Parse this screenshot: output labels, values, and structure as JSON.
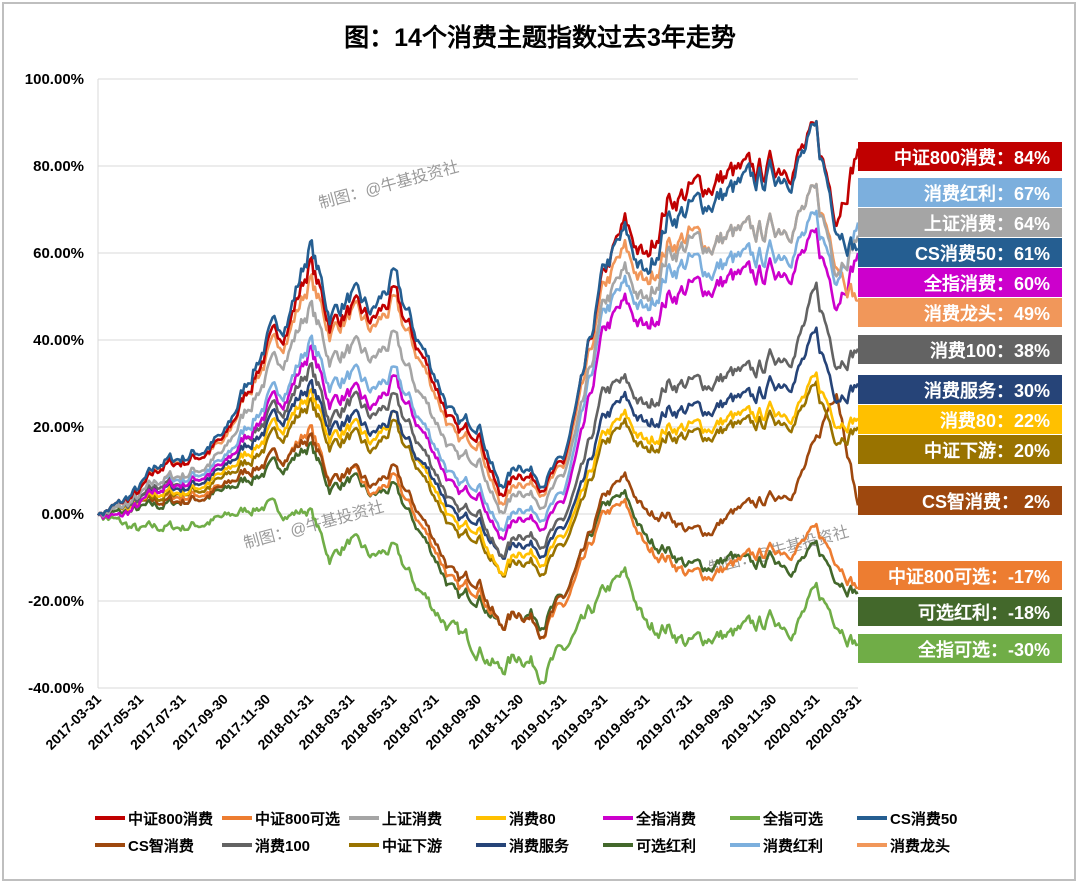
{
  "chart_data": {
    "type": "line",
    "title": "图：14个消费主题指数过去3年走势",
    "x": [
      "2017-03-31",
      "2017-04-30",
      "2017-05-31",
      "2017-06-30",
      "2017-07-31",
      "2017-08-31",
      "2017-09-30",
      "2017-10-31",
      "2017-11-30",
      "2017-12-31",
      "2018-01-31",
      "2018-02-28",
      "2018-03-31",
      "2018-04-30",
      "2018-05-31",
      "2018-06-30",
      "2018-07-31",
      "2018-08-31",
      "2018-09-30",
      "2018-10-31",
      "2018-11-30",
      "2018-12-31",
      "2019-01-31",
      "2019-02-28",
      "2019-03-31",
      "2019-04-30",
      "2019-05-31",
      "2019-06-30",
      "2019-07-31",
      "2019-08-31",
      "2019-09-30",
      "2019-10-31",
      "2019-11-30",
      "2019-12-31",
      "2020-01-31",
      "2020-02-29",
      "2020-03-31"
    ],
    "x_tick_labels": [
      "2017-03-31",
      "2017-05-31",
      "2017-07-31",
      "2017-09-30",
      "2017-11-30",
      "2018-01-31",
      "2018-03-31",
      "2018-05-31",
      "2018-07-31",
      "2018-09-30",
      "2018-11-30",
      "2019-01-31",
      "2019-03-31",
      "2019-05-31",
      "2019-07-31",
      "2019-09-30",
      "2019-11-30",
      "2020-01-31",
      "2020-03-31"
    ],
    "y_tick_labels": [
      "100.00%",
      "80.00%",
      "60.00%",
      "40.00%",
      "20.00%",
      "0.00%",
      "-20.00%",
      "-40.00%"
    ],
    "ylim": [
      -40,
      100
    ],
    "y_unit": "%",
    "grid": true,
    "legend_position": "bottom",
    "watermark": "制图：@牛基投资社",
    "series": [
      {
        "name": "中证800消费",
        "color": "#c00000",
        "end_label": "中证800消费：84%",
        "values": [
          0,
          2,
          5,
          11,
          12,
          14,
          17,
          28,
          38,
          44,
          58,
          44,
          47,
          44,
          50,
          40,
          30,
          18,
          20,
          4,
          10,
          7,
          11,
          30,
          55,
          66,
          58,
          72,
          74,
          76,
          78,
          78,
          80,
          82,
          86,
          70,
          84
        ]
      },
      {
        "name": "中证800可选",
        "color": "#ed7d31",
        "end_label": "中证800可选：-17%",
        "values": [
          0,
          1,
          2,
          4,
          4,
          5,
          6,
          10,
          12,
          14,
          20,
          8,
          10,
          4,
          8,
          0,
          -8,
          -18,
          -16,
          -26,
          -22,
          -26,
          -22,
          -12,
          0,
          2,
          -8,
          -10,
          -14,
          -14,
          -12,
          -10,
          -8,
          -8,
          -4,
          -10,
          -17
        ]
      },
      {
        "name": "上证消费",
        "color": "#a5a5a5",
        "end_label": "上证消费：64%",
        "values": [
          0,
          1,
          4,
          8,
          9,
          11,
          14,
          24,
          32,
          38,
          48,
          36,
          38,
          35,
          40,
          30,
          22,
          12,
          14,
          0,
          6,
          3,
          8,
          24,
          48,
          55,
          48,
          60,
          62,
          62,
          64,
          64,
          66,
          68,
          72,
          58,
          64
        ]
      },
      {
        "name": "消费80",
        "color": "#ffc000",
        "end_label": "消费80：22%",
        "values": [
          0,
          1,
          2,
          5,
          5,
          7,
          9,
          14,
          18,
          22,
          28,
          18,
          20,
          16,
          22,
          14,
          6,
          -4,
          -2,
          -14,
          -8,
          -10,
          -6,
          4,
          18,
          22,
          16,
          20,
          20,
          20,
          22,
          22,
          24,
          24,
          30,
          22,
          22
        ]
      },
      {
        "name": "全指消费",
        "color": "#cc00cc",
        "end_label": "全指消费：60%",
        "values": [
          0,
          -1,
          2,
          6,
          7,
          9,
          11,
          18,
          24,
          28,
          38,
          26,
          28,
          24,
          30,
          22,
          14,
          4,
          6,
          -6,
          0,
          -2,
          2,
          18,
          42,
          48,
          42,
          50,
          52,
          52,
          54,
          54,
          56,
          58,
          62,
          50,
          60
        ]
      },
      {
        "name": "全指可选",
        "color": "#70ad47",
        "end_label": "全指可选：-30%",
        "values": [
          0,
          -2,
          -4,
          -3,
          -3,
          -2,
          -1,
          1,
          2,
          0,
          1,
          -10,
          -6,
          -10,
          -8,
          -16,
          -22,
          -28,
          -30,
          -36,
          -32,
          -36,
          -32,
          -26,
          -18,
          -14,
          -26,
          -26,
          -30,
          -28,
          -28,
          -26,
          -24,
          -26,
          -18,
          -24,
          -30
        ]
      },
      {
        "name": "CS消费50",
        "color": "#255e91",
        "end_label": "CS消费50：61%",
        "values": [
          0,
          2,
          6,
          12,
          13,
          15,
          18,
          30,
          40,
          46,
          62,
          46,
          50,
          46,
          54,
          42,
          32,
          20,
          22,
          6,
          12,
          8,
          12,
          30,
          56,
          64,
          54,
          68,
          70,
          72,
          74,
          76,
          78,
          80,
          86,
          68,
          61
        ]
      },
      {
        "name": "CS智消费",
        "color": "#9e480e",
        "end_label": "CS智消费：  2%",
        "values": [
          0,
          1,
          2,
          3,
          3,
          4,
          6,
          10,
          12,
          14,
          18,
          8,
          10,
          6,
          10,
          2,
          -6,
          -16,
          -14,
          -26,
          -22,
          -26,
          -20,
          -10,
          4,
          8,
          0,
          0,
          -4,
          -4,
          0,
          2,
          4,
          6,
          16,
          30,
          2
        ]
      },
      {
        "name": "消费100",
        "color": "#636363",
        "end_label": "消费100：38%",
        "values": [
          0,
          1,
          3,
          7,
          7,
          9,
          11,
          18,
          22,
          26,
          34,
          22,
          26,
          22,
          26,
          18,
          10,
          0,
          2,
          -10,
          -4,
          -6,
          -2,
          10,
          28,
          30,
          24,
          30,
          30,
          30,
          32,
          32,
          36,
          38,
          50,
          36,
          38
        ]
      },
      {
        "name": "中证下游",
        "color": "#997300",
        "end_label": "中证下游：20%",
        "values": [
          0,
          1,
          2,
          4,
          5,
          6,
          8,
          12,
          16,
          20,
          26,
          16,
          18,
          14,
          20,
          12,
          4,
          -6,
          -4,
          -14,
          -10,
          -12,
          -8,
          2,
          16,
          20,
          14,
          18,
          18,
          18,
          20,
          20,
          22,
          22,
          28,
          18,
          20
        ]
      },
      {
        "name": "消费服务",
        "color": "#264478",
        "end_label": "消费服务：30%",
        "values": [
          0,
          1,
          3,
          6,
          6,
          8,
          10,
          16,
          20,
          24,
          30,
          20,
          22,
          18,
          22,
          14,
          8,
          -2,
          0,
          -10,
          -6,
          -8,
          -4,
          6,
          22,
          26,
          20,
          24,
          24,
          24,
          26,
          26,
          30,
          32,
          40,
          28,
          30
        ]
      },
      {
        "name": "可选红利",
        "color": "#43682b",
        "end_label": "可选红利：-18%",
        "values": [
          0,
          0,
          1,
          2,
          3,
          4,
          5,
          8,
          10,
          12,
          16,
          6,
          8,
          4,
          6,
          -2,
          -10,
          -20,
          -18,
          -26,
          -22,
          -24,
          -20,
          -10,
          2,
          4,
          -6,
          -8,
          -12,
          -12,
          -10,
          -12,
          -10,
          -12,
          -8,
          -14,
          -18
        ]
      },
      {
        "name": "消费红利",
        "color": "#7cafdd",
        "end_label": "消费红利：67%",
        "values": [
          0,
          1,
          4,
          8,
          8,
          10,
          12,
          20,
          26,
          30,
          40,
          30,
          32,
          28,
          32,
          24,
          16,
          6,
          8,
          -4,
          2,
          0,
          4,
          22,
          46,
          52,
          46,
          56,
          58,
          56,
          58,
          58,
          60,
          62,
          66,
          56,
          67
        ]
      },
      {
        "name": "消费龙头",
        "color": "#f1975a",
        "end_label": "消费龙头：49%",
        "values": [
          0,
          2,
          5,
          12,
          12,
          14,
          16,
          28,
          36,
          42,
          54,
          42,
          46,
          42,
          48,
          38,
          28,
          16,
          18,
          2,
          8,
          6,
          10,
          28,
          52,
          60,
          52,
          62,
          64,
          62,
          64,
          64,
          66,
          68,
          72,
          60,
          49
        ]
      }
    ]
  }
}
